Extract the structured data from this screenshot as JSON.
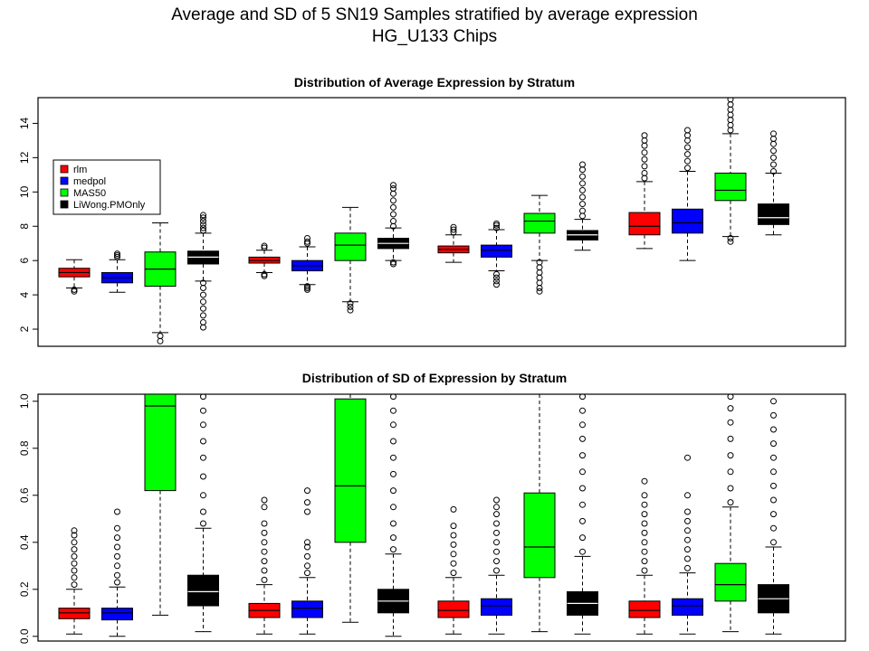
{
  "figure": {
    "title_line1": "Average and SD of 5 SN19 Samples stratified by average expression",
    "title_line2": "HG_U133 Chips"
  },
  "colors": {
    "rlm": "#ff0000",
    "medpol": "#0000ff",
    "MAS50": "#00ff00",
    "LiWong.PMOnly": "#000000"
  },
  "chart_data": [
    {
      "type": "box",
      "title": "Distribution of Average Expression by Stratum",
      "xlabel": "",
      "ylabel": "",
      "ylim": [
        1,
        15.5
      ],
      "yticks": [
        2,
        4,
        6,
        8,
        10,
        12,
        14
      ],
      "legend": {
        "placement": "left",
        "entries": [
          "rlm",
          "medpol",
          "MAS50",
          "LiWong.PMOnly"
        ]
      },
      "series_order": [
        "rlm",
        "medpol",
        "MAS50",
        "LiWong.PMOnly"
      ],
      "strata": [
        [
          {
            "series": "rlm",
            "min": 4.4,
            "q1": 5.05,
            "median": 5.3,
            "q3": 5.55,
            "max": 6.05,
            "outliers": [
              4.2,
              4.3
            ]
          },
          {
            "series": "medpol",
            "min": 4.15,
            "q1": 4.7,
            "median": 5.0,
            "q3": 5.3,
            "max": 6.05,
            "outliers": [
              6.2,
              6.3,
              6.4
            ]
          },
          {
            "series": "MAS50",
            "min": 1.8,
            "q1": 4.5,
            "median": 5.5,
            "q3": 6.5,
            "max": 8.2,
            "outliers": [
              1.3,
              1.6
            ]
          },
          {
            "series": "LiWong.PMOnly",
            "min": 4.8,
            "q1": 5.8,
            "median": 6.2,
            "q3": 6.55,
            "max": 7.6,
            "outliers": [
              2.1,
              2.4,
              2.8,
              3.2,
              3.6,
              4.0,
              4.4,
              4.7,
              7.75,
              7.9,
              8.1,
              8.3,
              8.5,
              8.65
            ]
          }
        ],
        [
          {
            "series": "rlm",
            "min": 5.3,
            "q1": 5.85,
            "median": 6.0,
            "q3": 6.2,
            "max": 6.6,
            "outliers": [
              5.1,
              5.2,
              6.75,
              6.85
            ]
          },
          {
            "series": "medpol",
            "min": 4.6,
            "q1": 5.4,
            "median": 5.7,
            "q3": 6.0,
            "max": 6.8,
            "outliers": [
              4.3,
              4.4,
              4.5,
              7.0,
              7.1,
              7.3
            ]
          },
          {
            "series": "MAS50",
            "min": 3.6,
            "q1": 6.0,
            "median": 6.9,
            "q3": 7.6,
            "max": 9.1,
            "outliers": [
              3.1,
              3.3,
              3.5
            ]
          },
          {
            "series": "LiWong.PMOnly",
            "min": 6.0,
            "q1": 6.7,
            "median": 7.0,
            "q3": 7.3,
            "max": 7.9,
            "outliers": [
              5.8,
              5.9,
              8.0,
              8.3,
              8.7,
              9.1,
              9.5,
              9.9,
              10.2,
              10.4
            ]
          }
        ],
        [
          {
            "series": "rlm",
            "min": 5.9,
            "q1": 6.45,
            "median": 6.65,
            "q3": 6.85,
            "max": 7.5,
            "outliers": [
              7.65,
              7.8,
              7.95
            ]
          },
          {
            "series": "medpol",
            "min": 5.4,
            "q1": 6.2,
            "median": 6.6,
            "q3": 6.9,
            "max": 7.8,
            "outliers": [
              4.6,
              4.8,
              5.0,
              5.2,
              7.9,
              8.05,
              8.15
            ]
          },
          {
            "series": "MAS50",
            "min": 6.0,
            "q1": 7.6,
            "median": 8.3,
            "q3": 8.75,
            "max": 9.8,
            "outliers": [
              4.2,
              4.4,
              4.7,
              5.0,
              5.3,
              5.6,
              5.9
            ]
          },
          {
            "series": "LiWong.PMOnly",
            "min": 6.6,
            "q1": 7.2,
            "median": 7.5,
            "q3": 7.75,
            "max": 8.4,
            "outliers": [
              8.6,
              8.9,
              9.3,
              9.7,
              10.1,
              10.5,
              10.9,
              11.3,
              11.6
            ]
          }
        ],
        [
          {
            "series": "rlm",
            "min": 6.7,
            "q1": 7.5,
            "median": 8.0,
            "q3": 8.8,
            "max": 10.6,
            "outliers": [
              10.8,
              11.1,
              11.5,
              11.9,
              12.3,
              12.7,
              13.0,
              13.3
            ]
          },
          {
            "series": "medpol",
            "min": 6.0,
            "q1": 7.6,
            "median": 8.2,
            "q3": 9.0,
            "max": 11.2,
            "outliers": [
              11.4,
              11.8,
              12.2,
              12.6,
              13.0,
              13.3,
              13.6
            ]
          },
          {
            "series": "MAS50",
            "min": 7.4,
            "q1": 9.5,
            "median": 10.1,
            "q3": 11.1,
            "max": 13.4,
            "outliers": [
              7.1,
              7.3,
              13.6,
              13.9,
              14.2,
              14.5,
              14.8,
              15.1,
              15.4
            ]
          },
          {
            "series": "LiWong.PMOnly",
            "min": 7.5,
            "q1": 8.1,
            "median": 8.5,
            "q3": 9.3,
            "max": 11.1,
            "outliers": [
              11.2,
              11.6,
              12.0,
              12.4,
              12.8,
              13.1,
              13.4
            ]
          }
        ]
      ]
    },
    {
      "type": "box",
      "title": "Distribution of SD of Expression by Stratum",
      "xlabel": "",
      "ylabel": "",
      "ylim": [
        -0.02,
        1.03
      ],
      "yticks": [
        0.0,
        0.2,
        0.4,
        0.6,
        0.8,
        1.0
      ],
      "series_order": [
        "rlm",
        "medpol",
        "MAS50",
        "LiWong.PMOnly"
      ],
      "strata": [
        [
          {
            "series": "rlm",
            "min": 0.01,
            "q1": 0.075,
            "median": 0.1,
            "q3": 0.12,
            "max": 0.2,
            "outliers": [
              0.22,
              0.25,
              0.28,
              0.31,
              0.34,
              0.37,
              0.4,
              0.43,
              0.45
            ]
          },
          {
            "series": "medpol",
            "min": 0.0,
            "q1": 0.07,
            "median": 0.1,
            "q3": 0.12,
            "max": 0.21,
            "outliers": [
              0.23,
              0.26,
              0.3,
              0.34,
              0.38,
              0.42,
              0.46,
              0.53
            ]
          },
          {
            "series": "MAS50",
            "min": 0.09,
            "q1": 0.62,
            "median": 0.98,
            "q3": 1.03,
            "max": 1.03,
            "outliers": []
          },
          {
            "series": "LiWong.PMOnly",
            "min": 0.02,
            "q1": 0.13,
            "median": 0.19,
            "q3": 0.26,
            "max": 0.46,
            "outliers": [
              0.48,
              0.53,
              0.6,
              0.68,
              0.76,
              0.83,
              0.9,
              0.96,
              1.02
            ]
          }
        ],
        [
          {
            "series": "rlm",
            "min": 0.01,
            "q1": 0.08,
            "median": 0.11,
            "q3": 0.14,
            "max": 0.22,
            "outliers": [
              0.24,
              0.28,
              0.32,
              0.36,
              0.4,
              0.44,
              0.48,
              0.55,
              0.58
            ]
          },
          {
            "series": "medpol",
            "min": 0.01,
            "q1": 0.08,
            "median": 0.12,
            "q3": 0.15,
            "max": 0.25,
            "outliers": [
              0.27,
              0.3,
              0.34,
              0.38,
              0.4,
              0.53,
              0.57,
              0.62
            ]
          },
          {
            "series": "MAS50",
            "min": 0.06,
            "q1": 0.4,
            "median": 0.64,
            "q3": 1.01,
            "max": 1.03,
            "outliers": []
          },
          {
            "series": "LiWong.PMOnly",
            "min": 0.0,
            "q1": 0.1,
            "median": 0.15,
            "q3": 0.2,
            "max": 0.35,
            "outliers": [
              0.37,
              0.42,
              0.48,
              0.55,
              0.62,
              0.69,
              0.76,
              0.83,
              0.9,
              0.96,
              1.02
            ]
          }
        ],
        [
          {
            "series": "rlm",
            "min": 0.01,
            "q1": 0.08,
            "median": 0.11,
            "q3": 0.15,
            "max": 0.25,
            "outliers": [
              0.27,
              0.31,
              0.35,
              0.39,
              0.43,
              0.47,
              0.54
            ]
          },
          {
            "series": "medpol",
            "min": 0.01,
            "q1": 0.09,
            "median": 0.13,
            "q3": 0.16,
            "max": 0.26,
            "outliers": [
              0.28,
              0.32,
              0.36,
              0.4,
              0.44,
              0.48,
              0.52,
              0.55,
              0.58
            ]
          },
          {
            "series": "MAS50",
            "min": 0.02,
            "q1": 0.25,
            "median": 0.38,
            "q3": 0.61,
            "max": 1.03,
            "outliers": []
          },
          {
            "series": "LiWong.PMOnly",
            "min": 0.01,
            "q1": 0.09,
            "median": 0.14,
            "q3": 0.19,
            "max": 0.34,
            "outliers": [
              0.36,
              0.42,
              0.49,
              0.56,
              0.63,
              0.7,
              0.77,
              0.84,
              0.9,
              0.96,
              1.02
            ]
          }
        ],
        [
          {
            "series": "rlm",
            "min": 0.01,
            "q1": 0.08,
            "median": 0.11,
            "q3": 0.15,
            "max": 0.26,
            "outliers": [
              0.28,
              0.32,
              0.36,
              0.4,
              0.44,
              0.48,
              0.52,
              0.56,
              0.6,
              0.66
            ]
          },
          {
            "series": "medpol",
            "min": 0.01,
            "q1": 0.09,
            "median": 0.13,
            "q3": 0.16,
            "max": 0.27,
            "outliers": [
              0.29,
              0.33,
              0.37,
              0.41,
              0.45,
              0.49,
              0.53,
              0.6,
              0.76
            ]
          },
          {
            "series": "MAS50",
            "min": 0.02,
            "q1": 0.15,
            "median": 0.22,
            "q3": 0.31,
            "max": 0.55,
            "outliers": [
              0.57,
              0.63,
              0.7,
              0.77,
              0.84,
              0.91,
              0.97,
              1.02
            ]
          },
          {
            "series": "LiWong.PMOnly",
            "min": 0.01,
            "q1": 0.1,
            "median": 0.16,
            "q3": 0.22,
            "max": 0.38,
            "outliers": [
              0.4,
              0.46,
              0.52,
              0.58,
              0.64,
              0.7,
              0.76,
              0.82,
              0.88,
              0.94,
              1.0
            ]
          }
        ]
      ]
    }
  ]
}
